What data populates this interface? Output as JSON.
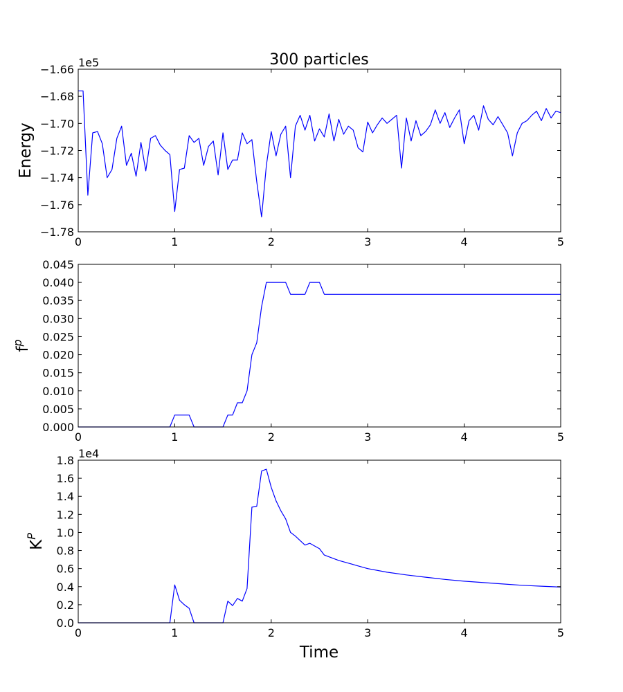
{
  "figure": {
    "title": "300 particles",
    "xlabel": "Time"
  },
  "chart_data": [
    {
      "type": "line",
      "ylabel": "Energy",
      "multiplier": "1e5",
      "xlim": [
        0,
        5
      ],
      "ylim": [
        -1.78,
        -1.66
      ],
      "xticks": [
        "0",
        "1",
        "2",
        "3",
        "4",
        "5"
      ],
      "yticks": [
        "−1.78",
        "−1.76",
        "−1.74",
        "−1.72",
        "−1.70",
        "−1.68",
        "−1.66"
      ],
      "color": "#0000ff",
      "x": [
        0,
        0.05,
        0.1,
        0.15,
        0.2,
        0.25,
        0.3,
        0.35,
        0.4,
        0.45,
        0.5,
        0.55,
        0.6,
        0.65,
        0.7,
        0.75,
        0.8,
        0.85,
        0.9,
        0.95,
        1.0,
        1.05,
        1.1,
        1.15,
        1.2,
        1.25,
        1.3,
        1.35,
        1.4,
        1.45,
        1.5,
        1.55,
        1.6,
        1.65,
        1.7,
        1.75,
        1.8,
        1.85,
        1.9,
        1.95,
        2.0,
        2.05,
        2.1,
        2.15,
        2.2,
        2.25,
        2.3,
        2.35,
        2.4,
        2.45,
        2.5,
        2.55,
        2.6,
        2.65,
        2.7,
        2.75,
        2.8,
        2.85,
        2.9,
        2.95,
        3.0,
        3.05,
        3.1,
        3.15,
        3.2,
        3.25,
        3.3,
        3.35,
        3.4,
        3.45,
        3.5,
        3.55,
        3.6,
        3.65,
        3.7,
        3.75,
        3.8,
        3.85,
        3.9,
        3.95,
        4.0,
        4.05,
        4.1,
        4.15,
        4.2,
        4.25,
        4.3,
        4.35,
        4.4,
        4.45,
        4.5,
        4.55,
        4.6,
        4.65,
        4.7,
        4.75,
        4.8,
        4.85,
        4.9,
        4.95,
        5.0
      ],
      "y": [
        -1.676,
        -1.676,
        -1.753,
        -1.707,
        -1.706,
        -1.715,
        -1.74,
        -1.734,
        -1.711,
        -1.702,
        -1.731,
        -1.722,
        -1.739,
        -1.714,
        -1.735,
        -1.711,
        -1.709,
        -1.716,
        -1.72,
        -1.723,
        -1.765,
        -1.734,
        -1.733,
        -1.709,
        -1.714,
        -1.711,
        -1.731,
        -1.717,
        -1.713,
        -1.738,
        -1.707,
        -1.734,
        -1.727,
        -1.727,
        -1.707,
        -1.715,
        -1.712,
        -1.743,
        -1.769,
        -1.731,
        -1.706,
        -1.724,
        -1.708,
        -1.702,
        -1.74,
        -1.702,
        -1.694,
        -1.705,
        -1.694,
        -1.713,
        -1.704,
        -1.71,
        -1.693,
        -1.713,
        -1.697,
        -1.708,
        -1.702,
        -1.705,
        -1.718,
        -1.721,
        -1.699,
        -1.707,
        -1.701,
        -1.696,
        -1.7,
        -1.697,
        -1.694,
        -1.733,
        -1.696,
        -1.713,
        -1.698,
        -1.709,
        -1.706,
        -1.701,
        -1.69,
        -1.7,
        -1.692,
        -1.703,
        -1.696,
        -1.69,
        -1.715,
        -1.698,
        -1.694,
        -1.705,
        -1.687,
        -1.697,
        -1.701,
        -1.695,
        -1.701,
        -1.707,
        -1.724,
        -1.707,
        -1.7,
        -1.698,
        -1.694,
        -1.691,
        -1.698,
        -1.689,
        -1.696,
        -1.691,
        -1.692
      ]
    },
    {
      "type": "line",
      "ylabel": "f",
      "ylabel_superscript": "p",
      "xlim": [
        0,
        5
      ],
      "ylim": [
        0,
        0.045
      ],
      "xticks": [
        "0",
        "1",
        "2",
        "3",
        "4",
        "5"
      ],
      "yticks": [
        "0.000",
        "0.005",
        "0.010",
        "0.015",
        "0.020",
        "0.025",
        "0.030",
        "0.035",
        "0.040",
        "0.045"
      ],
      "color": "#0000ff",
      "x": [
        0,
        0.95,
        1.0,
        1.05,
        1.1,
        1.15,
        1.2,
        1.5,
        1.55,
        1.6,
        1.65,
        1.7,
        1.75,
        1.8,
        1.85,
        1.9,
        1.95,
        2.0,
        2.05,
        2.1,
        2.15,
        2.2,
        2.25,
        2.3,
        2.35,
        2.4,
        2.45,
        2.5,
        2.55,
        5.0
      ],
      "y": [
        0,
        0,
        0.0033,
        0.0033,
        0.0033,
        0.0033,
        0,
        0,
        0.0033,
        0.0033,
        0.0067,
        0.0067,
        0.01,
        0.02,
        0.0233,
        0.0333,
        0.04,
        0.04,
        0.04,
        0.04,
        0.04,
        0.0367,
        0.0367,
        0.0367,
        0.0367,
        0.04,
        0.04,
        0.04,
        0.0367,
        0.0367
      ]
    },
    {
      "type": "line",
      "ylabel": "K",
      "ylabel_superscript": "P",
      "multiplier": "1e4",
      "xlim": [
        0,
        5
      ],
      "ylim": [
        0,
        1.8
      ],
      "xticks": [
        "0",
        "1",
        "2",
        "3",
        "4",
        "5"
      ],
      "yticks": [
        "0.0",
        "0.2",
        "0.4",
        "0.6",
        "0.8",
        "1.0",
        "1.2",
        "1.4",
        "1.6",
        "1.8"
      ],
      "color": "#0000ff",
      "x": [
        0,
        0.95,
        1.0,
        1.05,
        1.1,
        1.15,
        1.2,
        1.5,
        1.55,
        1.6,
        1.65,
        1.7,
        1.75,
        1.8,
        1.85,
        1.9,
        1.95,
        2.0,
        2.05,
        2.1,
        2.15,
        2.2,
        2.25,
        2.3,
        2.35,
        2.4,
        2.45,
        2.5,
        2.55,
        2.6,
        2.7,
        2.8,
        2.9,
        3.0,
        3.2,
        3.4,
        3.6,
        3.8,
        4.0,
        4.2,
        4.4,
        4.6,
        4.8,
        5.0
      ],
      "y": [
        0,
        0,
        0.42,
        0.25,
        0.2,
        0.16,
        0,
        0,
        0.24,
        0.19,
        0.27,
        0.24,
        0.38,
        1.28,
        1.29,
        1.68,
        1.7,
        1.5,
        1.35,
        1.24,
        1.15,
        1.0,
        0.96,
        0.91,
        0.86,
        0.88,
        0.85,
        0.82,
        0.75,
        0.73,
        0.69,
        0.66,
        0.63,
        0.6,
        0.56,
        0.53,
        0.505,
        0.48,
        0.46,
        0.445,
        0.43,
        0.415,
        0.405,
        0.395
      ]
    }
  ]
}
